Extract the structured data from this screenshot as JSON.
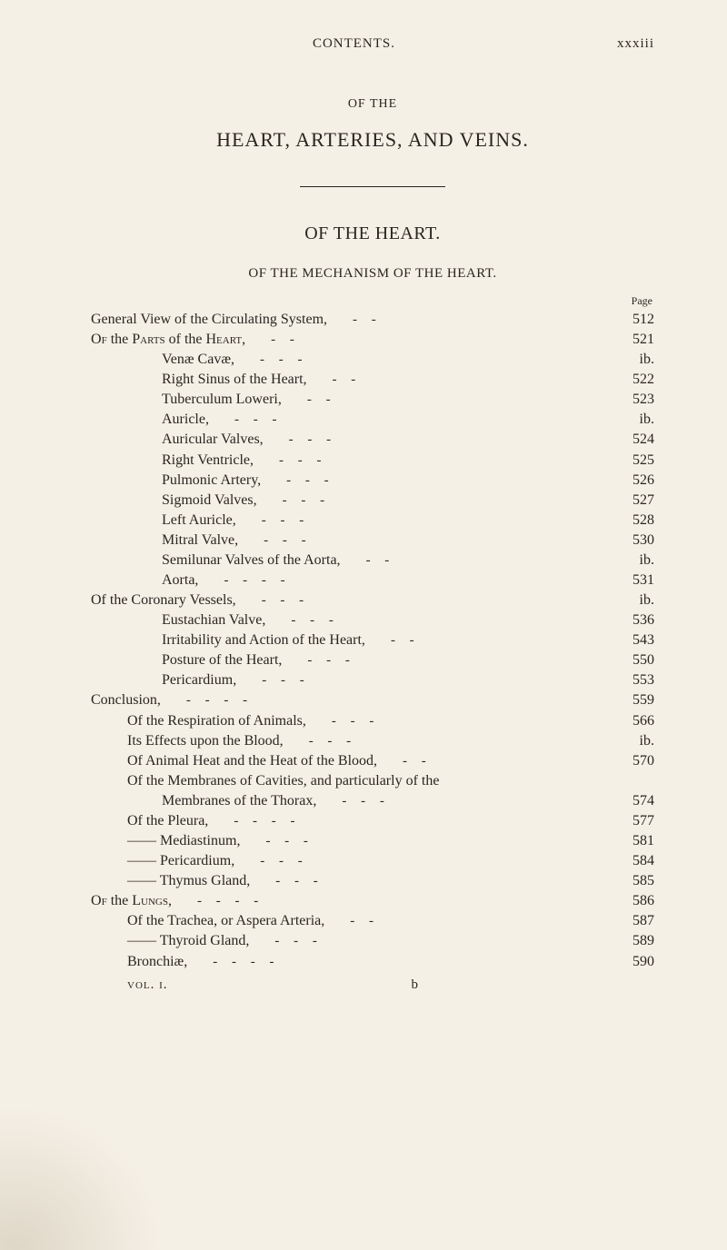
{
  "running_head": {
    "left": "CONTENTS.",
    "right": "xxxiii"
  },
  "of_the": "OF THE",
  "main_title": "HEART, ARTERIES, AND VEINS.",
  "section_title": "OF THE HEART.",
  "subsection_title": "OF THE MECHANISM OF THE HEART.",
  "page_label": "Page",
  "entries": [
    {
      "label": "General View of the Circulating System,",
      "page": "512",
      "indent": 0,
      "dashes": 2
    },
    {
      "label_html": "O<span class='smallcaps'>f</span> the P<span class='smallcaps'>arts</span> of the H<span class='smallcaps'>eart</span>,",
      "page": "521",
      "indent": 0,
      "dashes": 2
    },
    {
      "label": "Venæ Cavæ,",
      "page": "ib.",
      "indent": 1,
      "dashes": 3
    },
    {
      "label": "Right Sinus of the Heart,",
      "page": "522",
      "indent": 1,
      "dashes": 2
    },
    {
      "label": "Tuberculum Loweri,",
      "page": "523",
      "indent": 1,
      "dashes": 2
    },
    {
      "label": "Auricle,",
      "page": "ib.",
      "indent": 1,
      "dashes": 3
    },
    {
      "label": "Auricular Valves,",
      "page": "524",
      "indent": 1,
      "dashes": 3
    },
    {
      "label": "Right Ventricle,",
      "page": "525",
      "indent": 1,
      "dashes": 3
    },
    {
      "label": "Pulmonic Artery,",
      "page": "526",
      "indent": 1,
      "dashes": 3
    },
    {
      "label": "Sigmoid Valves,",
      "page": "527",
      "indent": 1,
      "dashes": 3
    },
    {
      "label": "Left Auricle,",
      "page": "528",
      "indent": 1,
      "dashes": 3
    },
    {
      "label": "Mitral Valve,",
      "page": "530",
      "indent": 1,
      "dashes": 3
    },
    {
      "label": "Semilunar Valves of the Aorta,",
      "page": "ib.",
      "indent": 1,
      "dashes": 2
    },
    {
      "label": "Aorta,",
      "page": "531",
      "indent": 1,
      "dashes": 4
    },
    {
      "label": "Of the Coronary Vessels,",
      "page": "ib.",
      "indent": 0,
      "dashes": 3
    },
    {
      "label": "Eustachian Valve,",
      "page": "536",
      "indent": 1,
      "dashes": 3
    },
    {
      "label": "Irritability and Action of the Heart,",
      "page": "543",
      "indent": 1,
      "dashes": 2
    },
    {
      "label": "Posture of the Heart,",
      "page": "550",
      "indent": 1,
      "dashes": 3
    },
    {
      "label": "Pericardium,",
      "page": "553",
      "indent": 1,
      "dashes": 3
    },
    {
      "label": "Conclusion,",
      "page": "559",
      "indent": 0,
      "dashes": 4
    },
    {
      "label": "Of the Respiration of Animals,",
      "page": "566",
      "indent": "entry",
      "dashes": 3
    },
    {
      "label": "Its Effects upon the Blood,",
      "page": "ib.",
      "indent": "entry",
      "dashes": 3
    },
    {
      "label": "Of Animal Heat and the Heat of the Blood,",
      "page": "570",
      "indent": "entry",
      "dashes": 2
    },
    {
      "label": "Of the Membranes of Cavities, and particularly of the",
      "page": "",
      "indent": "entry",
      "dashes": 0
    },
    {
      "label": "Membranes of the Thorax,",
      "page": "574",
      "indent": 1,
      "dashes": 3
    },
    {
      "label": "Of the Pleura,",
      "page": "577",
      "indent": "entry",
      "dashes": 4
    },
    {
      "label": "—— Mediastinum,",
      "page": "581",
      "indent": "entry",
      "dashes": 3
    },
    {
      "label": "—— Pericardium,",
      "page": "584",
      "indent": "entry",
      "dashes": 3
    },
    {
      "label": "—— Thymus Gland,",
      "page": "585",
      "indent": "entry",
      "dashes": 3
    },
    {
      "label_html": "O<span class='smallcaps'>f</span> the L<span class='smallcaps'>ungs</span>,",
      "page": "586",
      "indent": 0,
      "dashes": 4
    },
    {
      "label": "Of the Trachea, or Aspera Arteria,",
      "page": "587",
      "indent": "entry",
      "dashes": 2
    },
    {
      "label": "—— Thyroid Gland,",
      "page": "589",
      "indent": "entry",
      "dashes": 3
    },
    {
      "label": "Bronchiæ,",
      "page": "590",
      "indent": "entry",
      "dashes": 4
    }
  ],
  "footer": {
    "vol": "vol. i.",
    "sig": "b"
  },
  "colors": {
    "background": "#f5f0e6",
    "text": "#2a2520"
  }
}
